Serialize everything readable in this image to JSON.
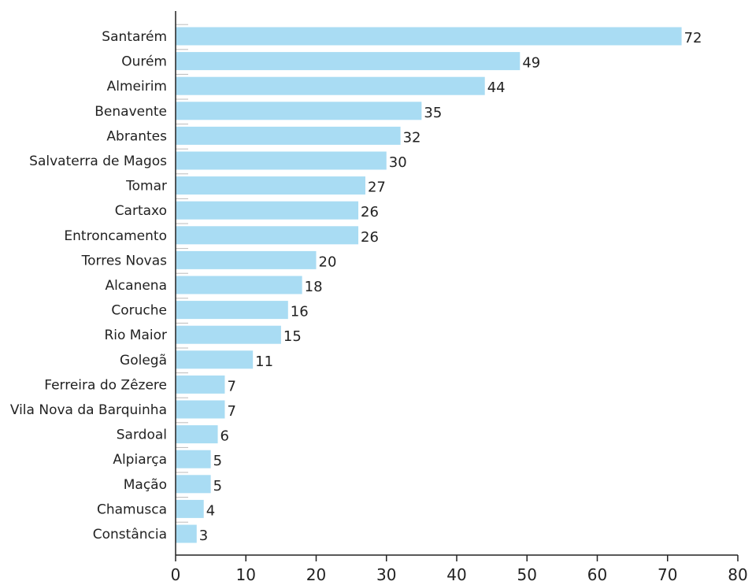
{
  "chart_data": {
    "type": "bar",
    "orientation": "horizontal",
    "title": "",
    "xlabel": "",
    "ylabel": "",
    "categories": [
      "Santarém",
      "Ourém",
      "Almeirim",
      "Benavente",
      "Abrantes",
      "Salvaterra de Magos",
      "Tomar",
      "Cartaxo",
      "Entroncamento",
      "Torres Novas",
      "Alcanena",
      "Coruche",
      "Rio Maior",
      "Golegã",
      "Ferreira do Zêzere",
      "Vila Nova da Barquinha",
      "Sardoal",
      "Alpiarça",
      "Mação",
      "Chamusca",
      "Constância"
    ],
    "values": [
      72,
      49,
      44,
      35,
      32,
      30,
      27,
      26,
      26,
      20,
      18,
      16,
      15,
      11,
      7,
      7,
      6,
      5,
      5,
      4,
      3
    ],
    "xlim": [
      0,
      80
    ],
    "xticks": [
      0,
      10,
      20,
      30,
      40,
      50,
      60,
      70,
      80
    ],
    "grid": false,
    "legend": "none",
    "bar_color": "#a9dcf3",
    "axis_color": "#222222"
  }
}
